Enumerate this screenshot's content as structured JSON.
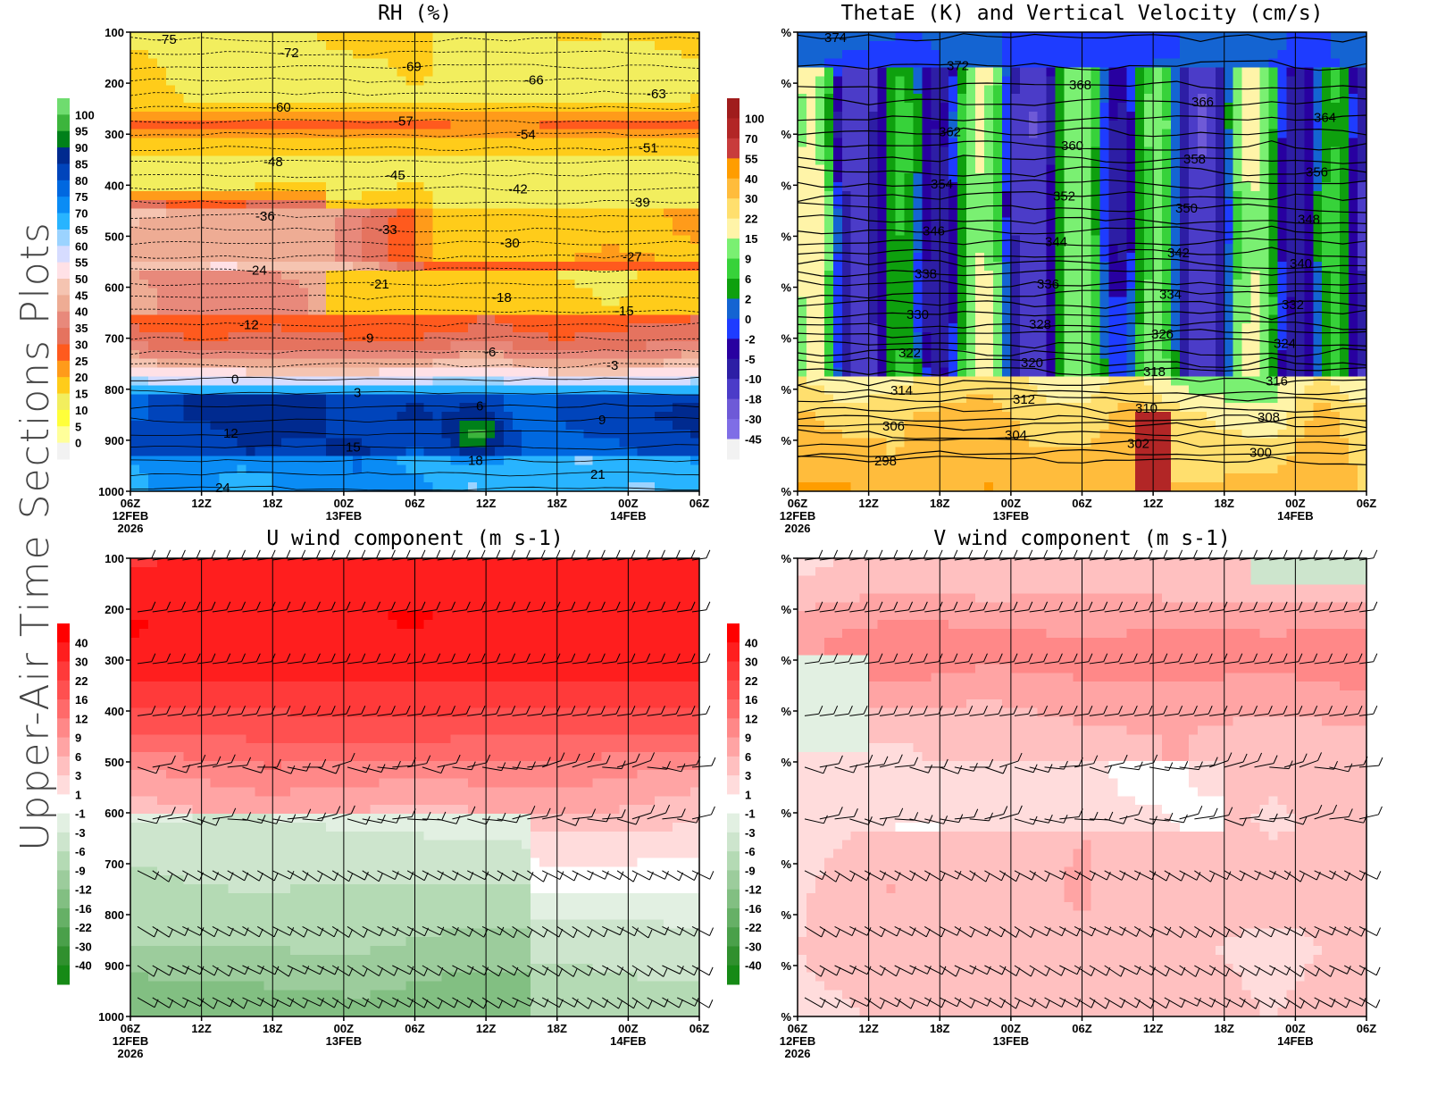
{
  "page": {
    "side_title": "Upper-Air Time Sections Plots"
  },
  "time_axis": {
    "ticks": [
      "06Z",
      "12Z",
      "18Z",
      "00Z",
      "06Z",
      "12Z",
      "18Z",
      "00Z",
      "06Z"
    ],
    "date_labels": [
      {
        "index": 0,
        "text": "12FEB"
      },
      {
        "index": 3,
        "text": "13FEB"
      },
      {
        "index": 7,
        "text": "14FEB"
      }
    ],
    "year_label": "2026"
  },
  "pressure_axis": {
    "ticks": [
      "100",
      "200",
      "300",
      "400",
      "500",
      "600",
      "700",
      "800",
      "900",
      "1000"
    ]
  },
  "chart_data": [
    {
      "id": "rh",
      "type": "heatmap",
      "title": "RH (%)",
      "xlabel": "",
      "ylabel": "",
      "y_ticks": [
        "100",
        "200",
        "300",
        "400",
        "500",
        "600",
        "700",
        "800",
        "900",
        "1000"
      ],
      "x_ticks": [
        "06Z",
        "12Z",
        "18Z",
        "00Z",
        "06Z",
        "12Z",
        "18Z",
        "00Z",
        "06Z"
      ],
      "colorbar": {
        "labels": [
          "100",
          "95",
          "90",
          "85",
          "80",
          "75",
          "70",
          "65",
          "60",
          "55",
          "50",
          "45",
          "40",
          "35",
          "30",
          "25",
          "20",
          "15",
          "10",
          "5",
          "0"
        ],
        "colors": [
          "#6fdc6f",
          "#3cb53c",
          "#00801a",
          "#002a8f",
          "#0044bb",
          "#0068e0",
          "#0a8cf5",
          "#28b4ff",
          "#9bd3ff",
          "#d6dcff",
          "#ffe1e6",
          "#f5c4b1",
          "#eeac94",
          "#e8897b",
          "#e5735f",
          "#ff5a1e",
          "#ff9b1a",
          "#ffcc1a",
          "#f2ee5e",
          "#ffff3a",
          "#ffff9a",
          "#f2f2f2"
        ]
      },
      "contour_lines": {
        "variable": "Temperature (C)",
        "labels": [
          "-75",
          "-72",
          "-69",
          "-66",
          "-63",
          "-60",
          "-57",
          "-54",
          "-51",
          "-48",
          "-45",
          "-42",
          "-39",
          "-36",
          "-33",
          "-30",
          "-27",
          "-24",
          "-21",
          "-18",
          "-15",
          "-12",
          "-9",
          "-6",
          "-3",
          "0",
          "3",
          "6",
          "9",
          "12",
          "15",
          "18",
          "21",
          "24"
        ]
      }
    },
    {
      "id": "thetae",
      "type": "heatmap",
      "title": "ThetaE (K) and Vertical Velocity (cm/s)",
      "y_ticks": [
        "%",
        "%",
        "%",
        "%",
        "%",
        "%",
        "%",
        "%",
        "%",
        "%"
      ],
      "x_ticks": [
        "06Z",
        "12Z",
        "18Z",
        "00Z",
        "06Z",
        "12Z",
        "18Z",
        "00Z",
        "06Z"
      ],
      "colorbar": {
        "labels": [
          "100",
          "70",
          "55",
          "40",
          "30",
          "22",
          "15",
          "9",
          "6",
          "2",
          "0",
          "-2",
          "-5",
          "-10",
          "-18",
          "-30",
          "-45"
        ],
        "colors": [
          "#a01c1c",
          "#b22626",
          "#c83c3c",
          "#ff9d00",
          "#ffbc3c",
          "#ffdf6e",
          "#fff4a8",
          "#7af072",
          "#37d23a",
          "#0ea00e",
          "#1464d2",
          "#1e3cff",
          "#2800a0",
          "#2d1ea5",
          "#4b3cc8",
          "#6e5ad7",
          "#7f6ee6",
          "#f2f2f2"
        ]
      },
      "contour_lines": {
        "variable": "ThetaE (K)",
        "labels": [
          "374",
          "372",
          "368",
          "366",
          "364",
          "362",
          "360",
          "358",
          "356",
          "354",
          "352",
          "350",
          "348",
          "346",
          "344",
          "342",
          "340",
          "338",
          "336",
          "334",
          "332",
          "330",
          "328",
          "326",
          "324",
          "322",
          "320",
          "318",
          "316",
          "314",
          "312",
          "310",
          "308",
          "306",
          "304",
          "302",
          "300",
          "298"
        ]
      }
    },
    {
      "id": "uwind",
      "type": "heatmap",
      "title": "U wind component (m s-1)",
      "y_ticks": [
        "100",
        "200",
        "300",
        "400",
        "500",
        "600",
        "700",
        "800",
        "900",
        "1000"
      ],
      "x_ticks": [
        "06Z",
        "12Z",
        "18Z",
        "00Z",
        "06Z",
        "12Z",
        "18Z",
        "00Z",
        "06Z"
      ],
      "colorbar": {
        "labels": [
          "40",
          "30",
          "22",
          "16",
          "12",
          "9",
          "6",
          "3",
          "1",
          "-1",
          "-3",
          "-6",
          "-9",
          "-12",
          "-16",
          "-22",
          "-30",
          "-40"
        ],
        "colors": [
          "#ff0000",
          "#ff1e1e",
          "#ff3a3a",
          "#ff5050",
          "#ff6a6a",
          "#ff8888",
          "#ffa4a4",
          "#ffc0c0",
          "#ffdcdc",
          "#ffffff",
          "#e2f0e2",
          "#cde5cd",
          "#b4dab4",
          "#9ccc9c",
          "#82bf82",
          "#66b066",
          "#4aa04a",
          "#30902e",
          "#168a16"
        ]
      },
      "barb_levels": [
        "100",
        "200",
        "300",
        "400",
        "500",
        "600",
        "700",
        "850",
        "925",
        "975"
      ]
    },
    {
      "id": "vwind",
      "type": "heatmap",
      "title": "V wind component (m s-1)",
      "y_ticks": [
        "%",
        "%",
        "%",
        "%",
        "%",
        "%",
        "%",
        "%",
        "%",
        "%"
      ],
      "x_ticks": [
        "06Z",
        "12Z",
        "18Z",
        "00Z",
        "06Z",
        "12Z",
        "18Z",
        "00Z",
        "06Z"
      ],
      "colorbar": {
        "labels": [
          "40",
          "30",
          "22",
          "16",
          "12",
          "9",
          "6",
          "3",
          "1",
          "-1",
          "-3",
          "-6",
          "-9",
          "-12",
          "-16",
          "-22",
          "-30",
          "-40"
        ],
        "colors": [
          "#ff0000",
          "#ff1e1e",
          "#ff3a3a",
          "#ff5050",
          "#ff6a6a",
          "#ff8888",
          "#ffa4a4",
          "#ffc0c0",
          "#ffdcdc",
          "#ffffff",
          "#e2f0e2",
          "#cde5cd",
          "#b4dab4",
          "#9ccc9c",
          "#82bf82",
          "#66b066",
          "#4aa04a",
          "#30902e",
          "#168a16"
        ]
      },
      "barb_levels": [
        "100",
        "200",
        "300",
        "400",
        "500",
        "600",
        "700",
        "850",
        "925",
        "975"
      ]
    }
  ]
}
